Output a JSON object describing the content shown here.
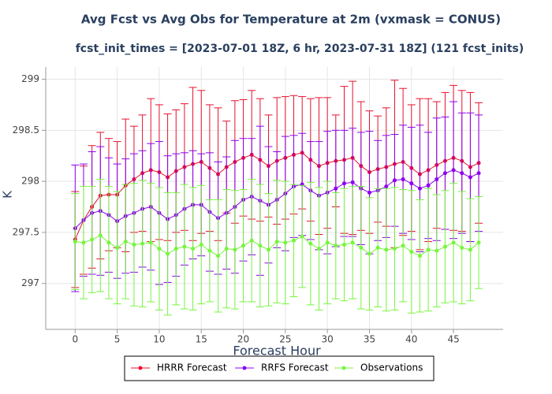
{
  "chart_data": {
    "type": "line",
    "title": "Avg Fcst vs Avg Obs for Temperature at 2m (vxmask = CONUS)",
    "subtitle": "fcst_init_times = [2023-07-01 18Z, 6 hr, 2023-07-31 18Z] (121 fcst_inits)",
    "x_label": "Forecast Hour",
    "y_label": "K",
    "x": [
      0,
      1,
      2,
      3,
      4,
      5,
      6,
      7,
      8,
      9,
      10,
      11,
      12,
      13,
      14,
      15,
      16,
      17,
      18,
      19,
      20,
      21,
      22,
      23,
      24,
      25,
      26,
      27,
      28,
      29,
      30,
      31,
      32,
      33,
      34,
      35,
      36,
      37,
      38,
      39,
      40,
      41,
      42,
      43,
      44,
      45,
      46,
      47,
      48
    ],
    "xlim": [
      -3.5,
      50.9
    ],
    "xticks": [
      0,
      5,
      10,
      15,
      20,
      25,
      30,
      35,
      40,
      45
    ],
    "ylim": [
      296.55,
      299.12
    ],
    "yticks": [
      297,
      297.5,
      298,
      298.5,
      299
    ],
    "grid": true,
    "legend": "bottom",
    "series": [
      {
        "name": "HRRR Forecast",
        "color": "#e8112d",
        "values": [
          297.43,
          297.62,
          297.75,
          297.86,
          297.87,
          297.87,
          297.96,
          298.02,
          298.08,
          298.11,
          298.09,
          298.04,
          298.1,
          298.14,
          298.17,
          298.19,
          298.13,
          298.07,
          298.14,
          298.19,
          298.23,
          298.26,
          298.21,
          298.15,
          298.2,
          298.23,
          298.26,
          298.28,
          298.21,
          298.15,
          298.18,
          298.2,
          298.21,
          298.23,
          298.15,
          298.09,
          298.12,
          298.14,
          298.17,
          298.19,
          298.13,
          298.07,
          298.11,
          298.16,
          298.2,
          298.23,
          298.2,
          298.14,
          298.18
        ],
        "errors": [
          0.47,
          0.53,
          0.6,
          0.62,
          0.55,
          0.52,
          0.65,
          0.52,
          0.57,
          0.7,
          0.66,
          0.62,
          0.6,
          0.62,
          0.75,
          0.7,
          0.62,
          0.65,
          0.45,
          0.6,
          0.57,
          0.63,
          0.6,
          0.5,
          0.62,
          0.6,
          0.58,
          0.55,
          0.6,
          0.67,
          0.64,
          0.45,
          0.72,
          0.75,
          0.63,
          0.6,
          0.52,
          0.58,
          0.82,
          0.72,
          0.62,
          0.74,
          0.7,
          0.62,
          0.67,
          0.71,
          0.69,
          0.73,
          0.59
        ]
      },
      {
        "name": "RRFS Forecast",
        "color": "#8c00f0",
        "values": [
          297.54,
          297.62,
          297.69,
          297.71,
          297.67,
          297.61,
          297.66,
          297.69,
          297.73,
          297.75,
          297.69,
          297.63,
          297.67,
          297.73,
          297.77,
          297.77,
          297.7,
          297.64,
          297.69,
          297.75,
          297.82,
          297.85,
          297.81,
          297.77,
          297.82,
          297.88,
          297.95,
          297.97,
          297.91,
          297.86,
          297.89,
          297.93,
          297.98,
          297.99,
          297.93,
          297.89,
          297.91,
          297.95,
          298.01,
          298.02,
          297.98,
          297.93,
          297.96,
          298.02,
          298.08,
          298.11,
          298.08,
          298.04,
          298.08
        ],
        "errors": [
          0.62,
          0.55,
          0.6,
          0.63,
          0.56,
          0.56,
          0.56,
          0.58,
          0.57,
          0.62,
          0.7,
          0.62,
          0.6,
          0.55,
          0.53,
          0.5,
          0.58,
          0.55,
          0.55,
          0.65,
          0.6,
          0.57,
          0.73,
          0.57,
          0.47,
          0.56,
          0.5,
          0.5,
          0.48,
          0.53,
          0.6,
          0.57,
          0.52,
          0.53,
          0.55,
          0.6,
          0.49,
          0.5,
          0.45,
          0.53,
          0.55,
          0.62,
          0.52,
          0.6,
          0.55,
          0.67,
          0.59,
          0.63,
          0.57
        ]
      },
      {
        "name": "Observations",
        "color": "#77f53d",
        "values": [
          297.41,
          297.4,
          297.43,
          297.47,
          297.4,
          297.35,
          297.41,
          297.38,
          297.39,
          297.4,
          297.34,
          297.29,
          297.34,
          297.36,
          297.34,
          297.38,
          297.32,
          297.27,
          297.34,
          297.33,
          297.37,
          297.42,
          297.37,
          297.33,
          297.41,
          297.4,
          297.42,
          297.46,
          297.39,
          297.34,
          297.4,
          297.37,
          297.38,
          297.4,
          297.35,
          297.29,
          297.35,
          297.33,
          297.34,
          297.37,
          297.31,
          297.27,
          297.33,
          297.32,
          297.36,
          297.4,
          297.35,
          297.33,
          297.4
        ],
        "errors": [
          0.47,
          0.55,
          0.52,
          0.55,
          0.55,
          0.55,
          0.56,
          0.6,
          0.62,
          0.58,
          0.6,
          0.6,
          0.55,
          0.61,
          0.6,
          0.58,
          0.5,
          0.55,
          0.58,
          0.58,
          0.55,
          0.6,
          0.6,
          0.55,
          0.6,
          0.6,
          0.55,
          0.5,
          0.6,
          0.6,
          0.6,
          0.52,
          0.55,
          0.55,
          0.6,
          0.55,
          0.58,
          0.6,
          0.6,
          0.55,
          0.6,
          0.55,
          0.6,
          0.55,
          0.55,
          0.58,
          0.55,
          0.5,
          0.45
        ]
      }
    ]
  }
}
